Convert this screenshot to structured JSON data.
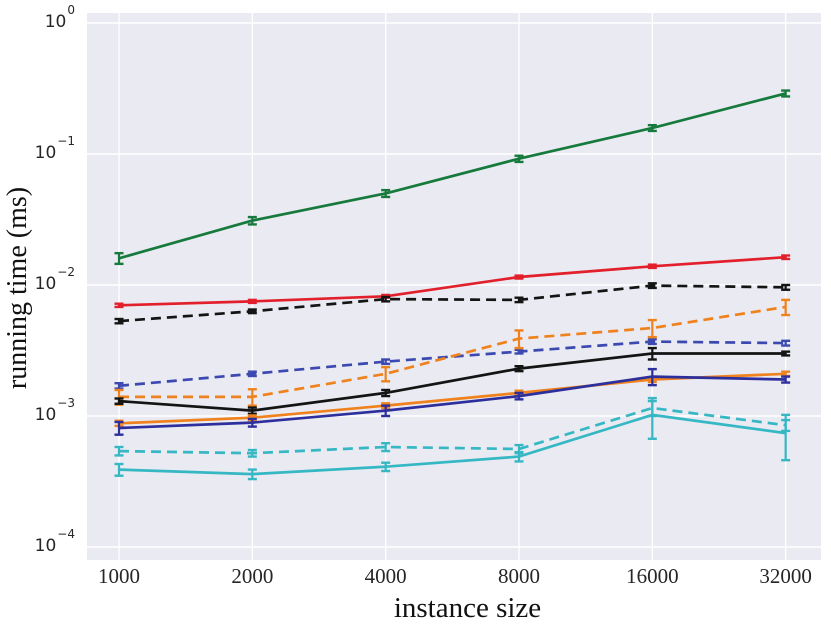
{
  "figure": {
    "xlabel": "instance size",
    "ylabel": "running time (ms)",
    "plot_bg_color": "#eaeaf2",
    "grid_color": "#ffffff",
    "x_tick_labels": [
      "1000",
      "2000",
      "4000",
      "8000",
      "16000",
      "32000"
    ],
    "y_tick_labels": [
      {
        "base": "10",
        "exp": "0"
      },
      {
        "base": "10",
        "exp": "−1"
      },
      {
        "base": "10",
        "exp": "−2"
      },
      {
        "base": "10",
        "exp": "−3"
      },
      {
        "base": "10",
        "exp": "−4"
      }
    ]
  },
  "chart_data": {
    "type": "line",
    "title": "",
    "xlabel": "instance size",
    "ylabel": "running time (ms)",
    "xscale": "log2",
    "yscale": "log10",
    "xlim": [
      850,
      38000
    ],
    "ylim": [
      0.0001,
      1
    ],
    "grid": true,
    "legend": "none",
    "x": [
      1000,
      2000,
      4000,
      8000,
      16000,
      32000
    ],
    "x_ticks": [
      1000,
      2000,
      4000,
      8000,
      16000,
      32000
    ],
    "y_ticks": [
      1,
      0.1,
      0.01,
      0.001,
      0.0001
    ],
    "series": [
      {
        "name": "green-solid",
        "color": "#167a3d",
        "dash": "solid",
        "values": [
          0.016,
          0.031,
          0.05,
          0.092,
          0.158,
          0.29
        ],
        "err": [
          0.0015,
          0.002,
          0.003,
          0.005,
          0.008,
          0.015
        ]
      },
      {
        "name": "red-solid",
        "color": "#e2202c",
        "dash": "solid",
        "values": [
          0.007,
          0.0075,
          0.0082,
          0.0115,
          0.0139,
          0.0163
        ],
        "err": [
          0.0002,
          0.0002,
          0.0002,
          0.0003,
          0.0004,
          0.0005
        ]
      },
      {
        "name": "black-dashed",
        "color": "#141414",
        "dash": "dashed",
        "values": [
          0.0053,
          0.0063,
          0.0078,
          0.0077,
          0.0099,
          0.0096
        ],
        "err": [
          0.0002,
          0.0002,
          0.0003,
          0.0003,
          0.0004,
          0.0004
        ]
      },
      {
        "name": "blue-dashed",
        "color": "#3c49b0",
        "dash": "dashed",
        "values": [
          0.0017,
          0.0021,
          0.0026,
          0.0031,
          0.0037,
          0.0036
        ],
        "err": [
          8e-05,
          8e-05,
          0.0001,
          0.0001,
          0.00015,
          0.00015
        ]
      },
      {
        "name": "orange-dashed",
        "color": "#f0821e",
        "dash": "dashed",
        "values": [
          0.0014,
          0.0014,
          0.0021,
          0.0039,
          0.0047,
          0.0068
        ],
        "err": [
          0.00018,
          0.0002,
          0.00026,
          0.0006,
          0.0007,
          0.0009
        ]
      },
      {
        "name": "black-solid",
        "color": "#141414",
        "dash": "solid",
        "values": [
          0.0013,
          0.0011,
          0.0015,
          0.0023,
          0.003,
          0.003
        ],
        "err": [
          6e-05,
          6e-05,
          8e-05,
          0.0001,
          0.0003,
          0.0001
        ]
      },
      {
        "name": "orange-solid",
        "color": "#f0821e",
        "dash": "solid",
        "values": [
          0.00088,
          0.00097,
          0.0012,
          0.0015,
          0.0019,
          0.0021
        ],
        "err": [
          4e-05,
          4e-05,
          5e-05,
          6e-05,
          8e-05,
          8e-05
        ]
      },
      {
        "name": "navy-solid",
        "color": "#2c2f9c",
        "dash": "solid",
        "values": [
          0.00081,
          0.00089,
          0.0011,
          0.00142,
          0.002,
          0.0019
        ],
        "err": [
          9e-05,
          6e-05,
          0.0001,
          8e-05,
          0.00028,
          0.0001
        ]
      },
      {
        "name": "cyan-dashed",
        "color": "#36b8c4",
        "dash": "dashed",
        "values": [
          0.00054,
          0.00052,
          0.00058,
          0.00056,
          0.00115,
          0.00085
        ],
        "err": [
          4e-05,
          3e-05,
          4e-05,
          4e-05,
          0.00015,
          8e-05
        ]
      },
      {
        "name": "cyan-solid",
        "color": "#36b8c4",
        "dash": "solid",
        "values": [
          0.00039,
          0.00036,
          0.00041,
          0.00049,
          0.00102,
          0.00074
        ],
        "err": [
          4e-05,
          3e-05,
          3e-05,
          4e-05,
          0.00035,
          0.00028
        ]
      }
    ]
  }
}
